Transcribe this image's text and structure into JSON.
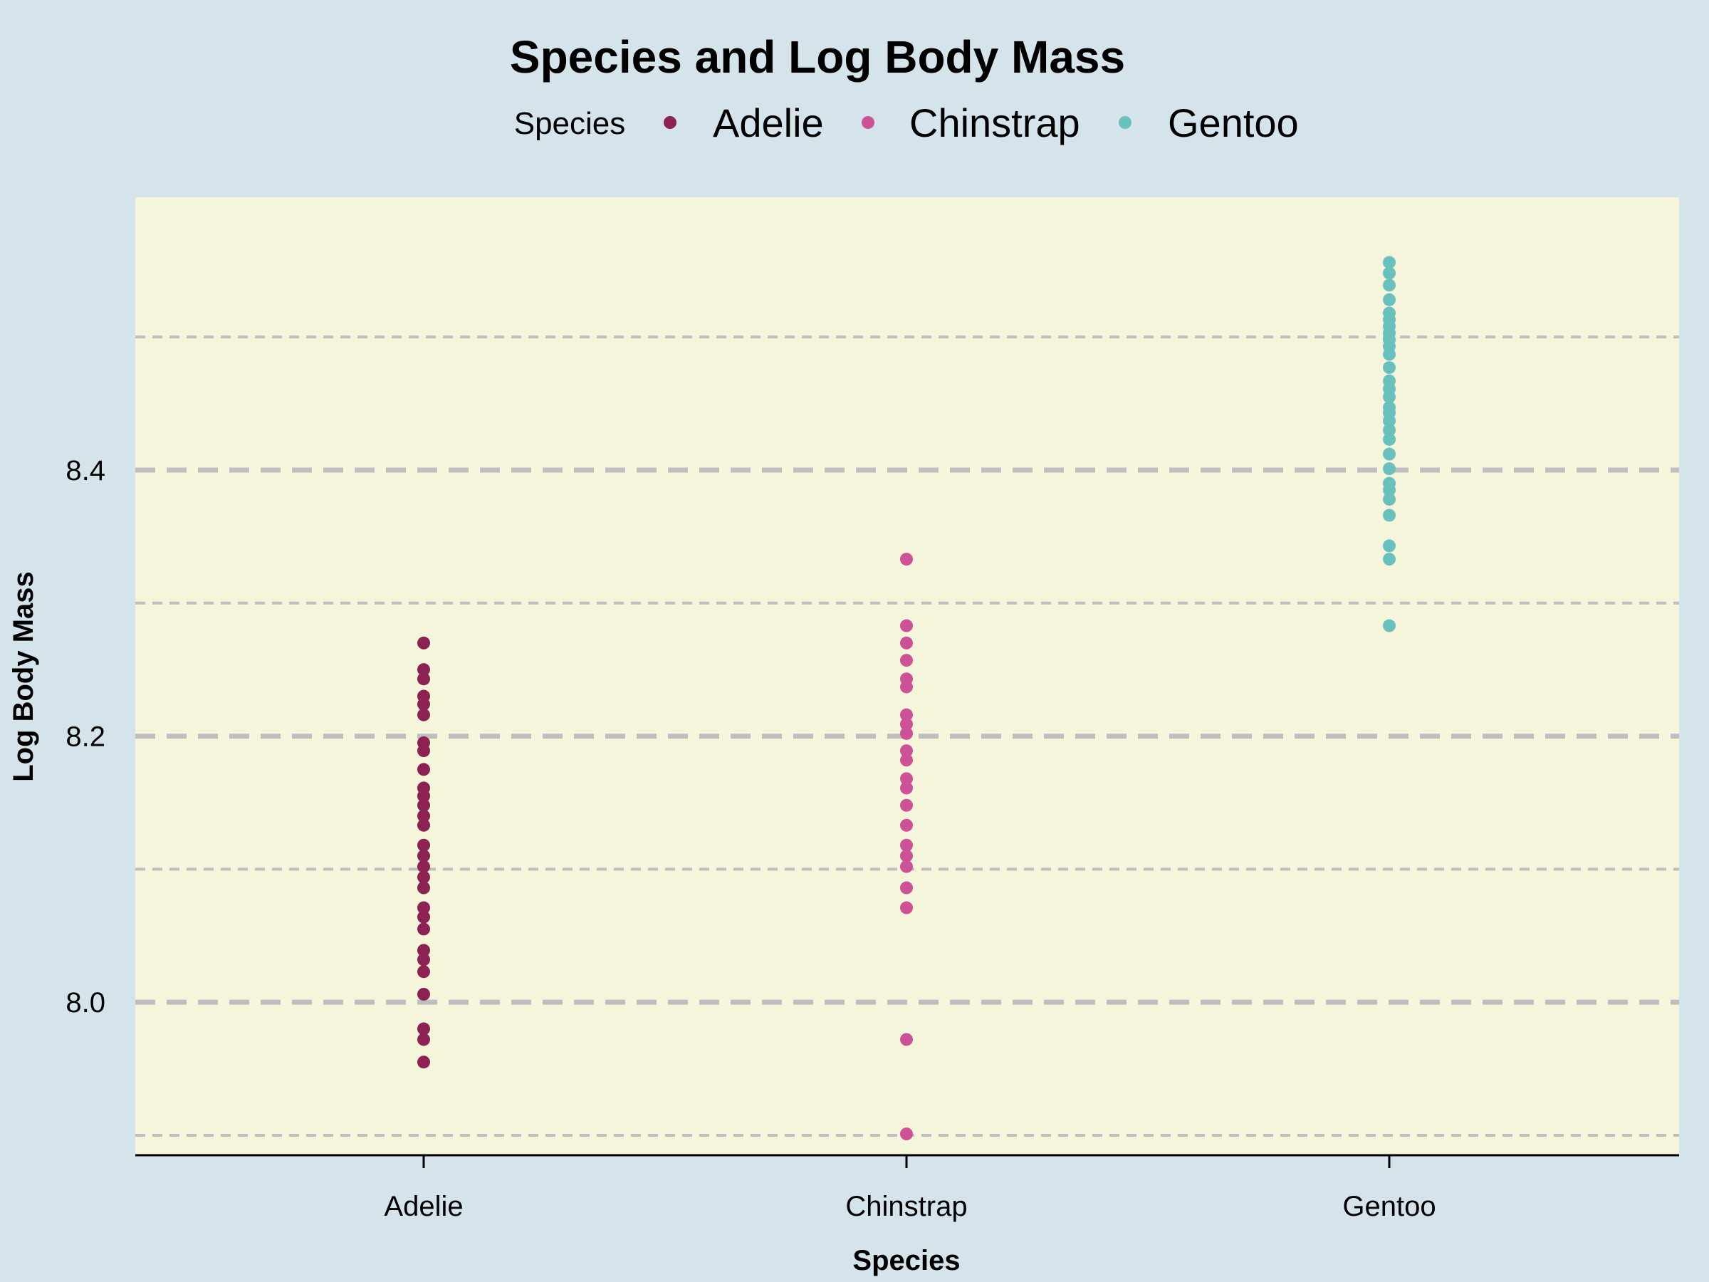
{
  "chart_data": {
    "type": "scatter",
    "title": "Species and Log Body Mass",
    "xlabel": "Species",
    "ylabel": "Log Body Mass",
    "legend_title": "Species",
    "legend_position": "top",
    "categories": [
      "Adelie",
      "Chinstrap",
      "Gentoo"
    ],
    "ylim": [
      7.885,
      8.605
    ],
    "y_ticks": [
      8.0,
      8.2,
      8.4
    ],
    "y_tick_labels": [
      "8.0",
      "8.2",
      "8.4"
    ],
    "major_grid": [
      8.0,
      8.2,
      8.4
    ],
    "minor_grid": [
      7.9,
      8.1,
      8.3,
      8.5
    ],
    "colors": {
      "background": "#d5e4eb",
      "panel": "#f5f5dc",
      "grid": "#bebebe",
      "Adelie": "#8b2252",
      "Chinstrap": "#cd5196",
      "Gentoo": "#6ac0bc"
    },
    "series": [
      {
        "name": "Adelie",
        "x": "Adelie",
        "values": [
          7.955,
          7.972,
          7.98,
          8.006,
          8.023,
          8.032,
          8.039,
          8.055,
          8.064,
          8.071,
          8.086,
          8.094,
          8.102,
          8.11,
          8.118,
          8.133,
          8.14,
          8.148,
          8.155,
          8.161,
          8.175,
          8.189,
          8.195,
          8.216,
          8.224,
          8.23,
          8.243,
          8.25,
          8.27
        ]
      },
      {
        "name": "Chinstrap",
        "x": "Chinstrap",
        "values": [
          7.901,
          7.972,
          8.071,
          8.086,
          8.102,
          8.11,
          8.118,
          8.133,
          8.148,
          8.161,
          8.168,
          8.182,
          8.189,
          8.202,
          8.209,
          8.216,
          8.237,
          8.243,
          8.257,
          8.27,
          8.283,
          8.333
        ]
      },
      {
        "name": "Gentoo",
        "x": "Gentoo",
        "values": [
          8.283,
          8.333,
          8.343,
          8.366,
          8.378,
          8.385,
          8.39,
          8.401,
          8.412,
          8.423,
          8.43,
          8.437,
          8.443,
          8.447,
          8.455,
          8.461,
          8.467,
          8.477,
          8.487,
          8.493,
          8.498,
          8.503,
          8.508,
          8.513,
          8.518,
          8.528,
          8.539,
          8.548,
          8.556
        ]
      }
    ]
  }
}
